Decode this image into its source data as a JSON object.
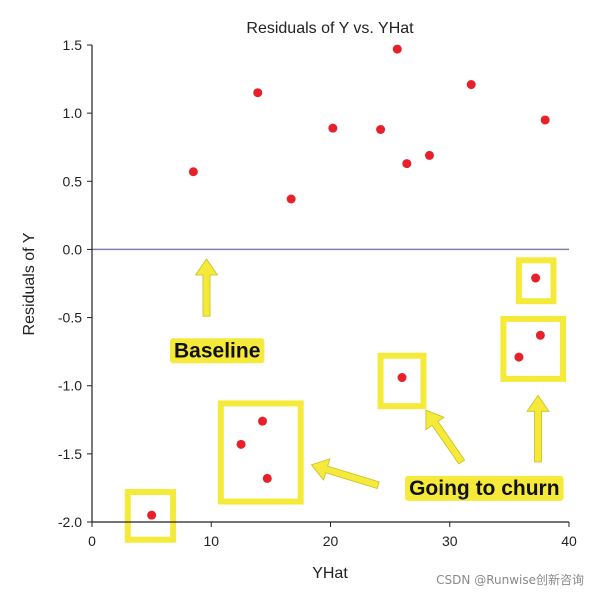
{
  "chart_data": {
    "type": "scatter",
    "title": "Residuals of Y vs. YHat",
    "xlabel": "YHat",
    "ylabel": "Residuals of Y",
    "xlim": [
      0,
      40
    ],
    "ylim": [
      -2.0,
      1.5
    ],
    "xticks": [
      0,
      10,
      20,
      30,
      40
    ],
    "yticks": [
      1.5,
      1.0,
      0.5,
      0.0,
      -0.5,
      -1.0,
      -1.5,
      -2.0
    ],
    "ytick_labels": [
      "1.5",
      "1.0",
      "0.5",
      "0.0",
      "-0.5",
      "-1.0",
      "-1.5",
      "-2.0"
    ],
    "baseline_y": 0.0,
    "grid": false,
    "colors": {
      "point": "#e8202a",
      "baseline": "#8080b0",
      "highlight": "#f5ea3a",
      "axis": "#222222"
    },
    "series": [
      {
        "x": [
          8.5,
          13.9,
          16.7,
          20.2,
          24.2,
          25.6,
          26.4,
          28.3,
          31.8,
          38.0,
          5.0,
          12.5,
          14.3,
          14.7,
          26.0,
          35.8,
          37.2,
          37.6
        ],
        "y": [
          0.57,
          1.15,
          0.37,
          0.89,
          0.88,
          1.47,
          0.63,
          0.69,
          1.21,
          0.95,
          -1.95,
          -1.43,
          -1.26,
          -1.68,
          -0.94,
          -0.79,
          -0.21,
          -0.63
        ]
      }
    ],
    "highlight_boxes": [
      {
        "xmin": 3.0,
        "xmax": 6.8,
        "ymin": -2.13,
        "ymax": -1.78
      },
      {
        "xmin": 10.8,
        "xmax": 17.5,
        "ymin": -1.85,
        "ymax": -1.13
      },
      {
        "xmin": 24.2,
        "xmax": 27.8,
        "ymin": -1.15,
        "ymax": -0.78
      },
      {
        "xmin": 34.5,
        "xmax": 39.5,
        "ymin": -0.95,
        "ymax": -0.51
      },
      {
        "xmin": 35.8,
        "xmax": 38.7,
        "ymin": -0.38,
        "ymax": -0.08
      }
    ],
    "annotations": [
      {
        "text": "Baseline",
        "x": 10.5,
        "y": -0.74
      },
      {
        "text": "Going to churn",
        "x": 32.9,
        "y": -1.75
      }
    ],
    "arrows": [
      {
        "from": [
          9.6,
          -0.49
        ],
        "to": [
          9.6,
          -0.07
        ]
      },
      {
        "from": [
          24.0,
          -1.73
        ],
        "to": [
          18.4,
          -1.58
        ]
      },
      {
        "from": [
          31.0,
          -1.56
        ],
        "to": [
          28.0,
          -1.18
        ]
      },
      {
        "from": [
          37.4,
          -1.56
        ],
        "to": [
          37.4,
          -1.07
        ]
      }
    ]
  },
  "watermark": "CSDN @Runwise创新咨询"
}
